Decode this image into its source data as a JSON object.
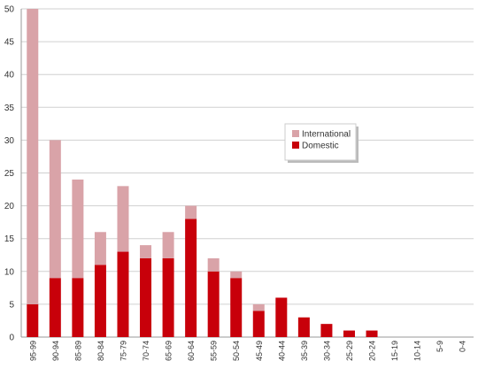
{
  "chart_data": {
    "type": "stacked-bar",
    "categories": [
      "95-99",
      "90-94",
      "85-89",
      "80-84",
      "75-79",
      "70-74",
      "65-69",
      "60-64",
      "55-59",
      "50-54",
      "45-49",
      "40-44",
      "35-39",
      "30-34",
      "25-29",
      "20-24",
      "15-19",
      "10-14",
      "5-9",
      "0-4"
    ],
    "series": [
      {
        "name": "Domestic",
        "color": "#c8000a",
        "values": [
          5,
          9,
          9,
          11,
          13,
          12,
          12,
          18,
          10,
          9,
          4,
          6,
          3,
          2,
          1,
          1,
          0,
          0,
          0,
          0
        ]
      },
      {
        "name": "International",
        "color": "#d9a3a8",
        "values": [
          45,
          21,
          15,
          5,
          10,
          2,
          4,
          2,
          2,
          1,
          1,
          0,
          0,
          0,
          0,
          0,
          0,
          0,
          0,
          0
        ]
      }
    ],
    "ylim": [
      0,
      50
    ],
    "yticks": [
      0,
      5,
      10,
      15,
      20,
      25,
      30,
      35,
      40,
      45,
      50
    ],
    "grid": true
  }
}
